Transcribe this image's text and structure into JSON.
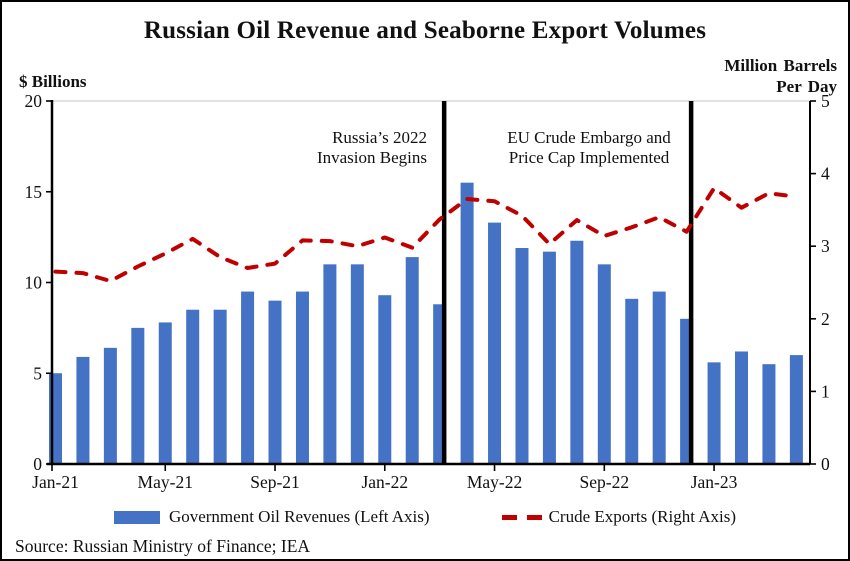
{
  "colors": {
    "bar_blue": "#4472C4",
    "line_red": "#C00000",
    "event_line_black": "#000000",
    "plot_top_border_gray": "#D9D9D9"
  },
  "chart_data": {
    "type": "bar+line",
    "title": "Russian Oil Revenue and Seaborne Export Volumes",
    "left_axis_label": "$ Billions",
    "right_axis_label_lines": [
      "Million Barrels",
      "Per Day"
    ],
    "left_ylim": [
      0,
      20
    ],
    "right_ylim": [
      0,
      5
    ],
    "left_ticks": [
      0,
      5,
      10,
      15,
      20
    ],
    "right_ticks": [
      0,
      1,
      2,
      3,
      4,
      5
    ],
    "grid": "none",
    "legend_position": "bottom-center",
    "categories": [
      "Jan-21",
      "Feb-21",
      "Mar-21",
      "Apr-21",
      "May-21",
      "Jun-21",
      "Jul-21",
      "Aug-21",
      "Sep-21",
      "Oct-21",
      "Nov-21",
      "Dec-21",
      "Jan-22",
      "Feb-22",
      "Mar-22",
      "Apr-22",
      "May-22",
      "Jun-22",
      "Jul-22",
      "Aug-22",
      "Sep-22",
      "Oct-22",
      "Nov-22",
      "Dec-22",
      "Jan-23",
      "Feb-23",
      "Mar-23",
      "Apr-23"
    ],
    "x_tick_labels": [
      "Jan-21",
      "May-21",
      "Sep-21",
      "Jan-22",
      "May-22",
      "Sep-22",
      "Jan-23"
    ],
    "x_tick_indices": [
      0,
      4,
      8,
      12,
      16,
      20,
      24
    ],
    "series": [
      {
        "name": "Government Oil Revenues (Left Axis)",
        "type": "bar",
        "axis": "left",
        "color": "#4472C4",
        "values": [
          5.0,
          5.9,
          6.4,
          7.5,
          7.8,
          8.5,
          8.5,
          9.5,
          9.0,
          9.5,
          11.0,
          11.0,
          9.3,
          11.4,
          8.8,
          15.5,
          13.3,
          11.9,
          11.7,
          12.3,
          11.0,
          9.1,
          9.5,
          8.0,
          5.6,
          6.2,
          5.5,
          6.0
        ]
      },
      {
        "name": "Crude Exports (Right Axis)",
        "type": "line",
        "line_style": "dashed",
        "axis": "right",
        "color": "#C00000",
        "values": [
          2.65,
          2.63,
          2.52,
          2.72,
          2.9,
          3.1,
          2.85,
          2.7,
          2.76,
          3.08,
          3.07,
          3.0,
          3.12,
          2.98,
          3.37,
          3.65,
          3.62,
          3.42,
          3.03,
          3.36,
          3.14,
          3.26,
          3.4,
          3.2,
          3.8,
          3.53,
          3.73,
          3.68
        ]
      }
    ],
    "event_lines": [
      {
        "id": "invasion",
        "index": 14,
        "after_category": "Mar-22",
        "label_lines": [
          "Russia’s 2022",
          "Invasion Begins"
        ]
      },
      {
        "id": "embargo",
        "index": 23,
        "after_category": "Dec-22",
        "label_lines": [
          "EU Crude Embargo and",
          "Price Cap Implemented"
        ]
      }
    ],
    "source_note": "Source: Russian Ministry of Finance; IEA"
  }
}
